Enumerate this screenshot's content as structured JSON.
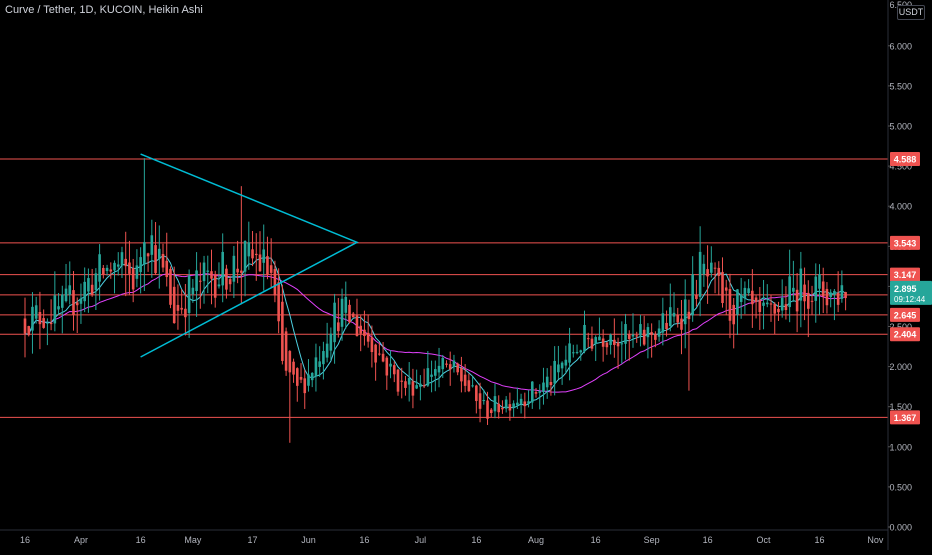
{
  "header": {
    "title": "Curve / Tether, 1D, KUCOIN, Heikin Ashi",
    "currency": "USDT"
  },
  "colors": {
    "background": "#000000",
    "up": "#26a69a",
    "down": "#ef5350",
    "ma_fast": "#4dd0e1",
    "ma_slow": "#e040fb",
    "levels": "#ef5350",
    "triangle": "#00bcd4",
    "axis_text": "#b2b5be",
    "current_price_bg": "#26a69a"
  },
  "chart_data": {
    "type": "candlestick",
    "y_axis": {
      "ticks": [
        "6.000",
        "5.500",
        "5.000",
        "4.500",
        "4.000",
        "3.500",
        "3.000",
        "2.500",
        "2.000",
        "1.500",
        "1.000",
        "0.500",
        "0.000"
      ],
      "top_tick_partial": "6.500",
      "ylim": [
        0,
        6.6
      ]
    },
    "x_axis": {
      "ticks": [
        "16",
        "Apr",
        "16",
        "May",
        "17",
        "Jun",
        "16",
        "Jul",
        "16",
        "Aug",
        "16",
        "Sep",
        "16",
        "Oct",
        "16",
        "Nov"
      ],
      "tick_day": [
        0,
        15,
        31,
        45,
        61,
        76,
        91,
        106,
        121,
        137,
        153,
        168,
        183,
        198,
        213,
        228
      ]
    },
    "horizontal_levels": [
      {
        "value": 4.588,
        "label": "4.588"
      },
      {
        "value": 3.543,
        "label": "3.543"
      },
      {
        "value": 3.147,
        "label": "3.147"
      },
      {
        "value": 2.894,
        "label": "2.894"
      },
      {
        "value": 2.645,
        "label": "2.645"
      },
      {
        "value": 2.404,
        "label": "2.404"
      },
      {
        "value": 1.367,
        "label": "1.367"
      }
    ],
    "current_price": {
      "value": 2.895,
      "label": "2.895",
      "countdown": "09:12:44"
    },
    "triangle": [
      {
        "day": 31,
        "price": 4.65
      },
      {
        "day": 89,
        "price": 3.55
      },
      {
        "day": 31,
        "price": 2.12
      }
    ],
    "anchors_close": [
      [
        0,
        2.6
      ],
      [
        10,
        2.7
      ],
      [
        18,
        3.1
      ],
      [
        24,
        3.25
      ],
      [
        30,
        3.1
      ],
      [
        32,
        3.8
      ],
      [
        36,
        3.3
      ],
      [
        40,
        2.65
      ],
      [
        45,
        3.0
      ],
      [
        49,
        3.1
      ],
      [
        54,
        3.2
      ],
      [
        58,
        3.3
      ],
      [
        62,
        3.35
      ],
      [
        66,
        3.15
      ],
      [
        69,
        2.0
      ],
      [
        73,
        1.7
      ],
      [
        76,
        1.9
      ],
      [
        79,
        2.2
      ],
      [
        82,
        2.6
      ],
      [
        85,
        2.7
      ],
      [
        89,
        2.5
      ],
      [
        93,
        2.3
      ],
      [
        97,
        2.0
      ],
      [
        101,
        1.75
      ],
      [
        105,
        1.8
      ],
      [
        110,
        2.0
      ],
      [
        114,
        1.95
      ],
      [
        118,
        1.8
      ],
      [
        121,
        1.55
      ],
      [
        124,
        1.45
      ],
      [
        128,
        1.55
      ],
      [
        132,
        1.62
      ],
      [
        137,
        1.7
      ],
      [
        141,
        1.85
      ],
      [
        145,
        2.1
      ],
      [
        149,
        2.3
      ],
      [
        153,
        2.4
      ],
      [
        158,
        2.45
      ],
      [
        162,
        2.3
      ],
      [
        166,
        2.35
      ],
      [
        170,
        2.5
      ],
      [
        174,
        2.6
      ],
      [
        178,
        2.8
      ],
      [
        181,
        3.2
      ],
      [
        185,
        3.0
      ],
      [
        189,
        2.7
      ],
      [
        193,
        2.8
      ],
      [
        197,
        2.55
      ],
      [
        201,
        2.7
      ],
      [
        205,
        2.9
      ],
      [
        209,
        3.0
      ],
      [
        213,
        2.95
      ],
      [
        217,
        2.9
      ],
      [
        220,
        3.0
      ]
    ],
    "wick_spikes": [
      {
        "day": 32,
        "high": 4.6
      },
      {
        "day": 58,
        "high": 4.25
      },
      {
        "day": 71,
        "low": 1.05
      },
      {
        "day": 181,
        "high": 3.75
      },
      {
        "day": 178,
        "low": 1.7
      }
    ],
    "ma_fast_period": 8,
    "ma_slow_period": 30
  }
}
